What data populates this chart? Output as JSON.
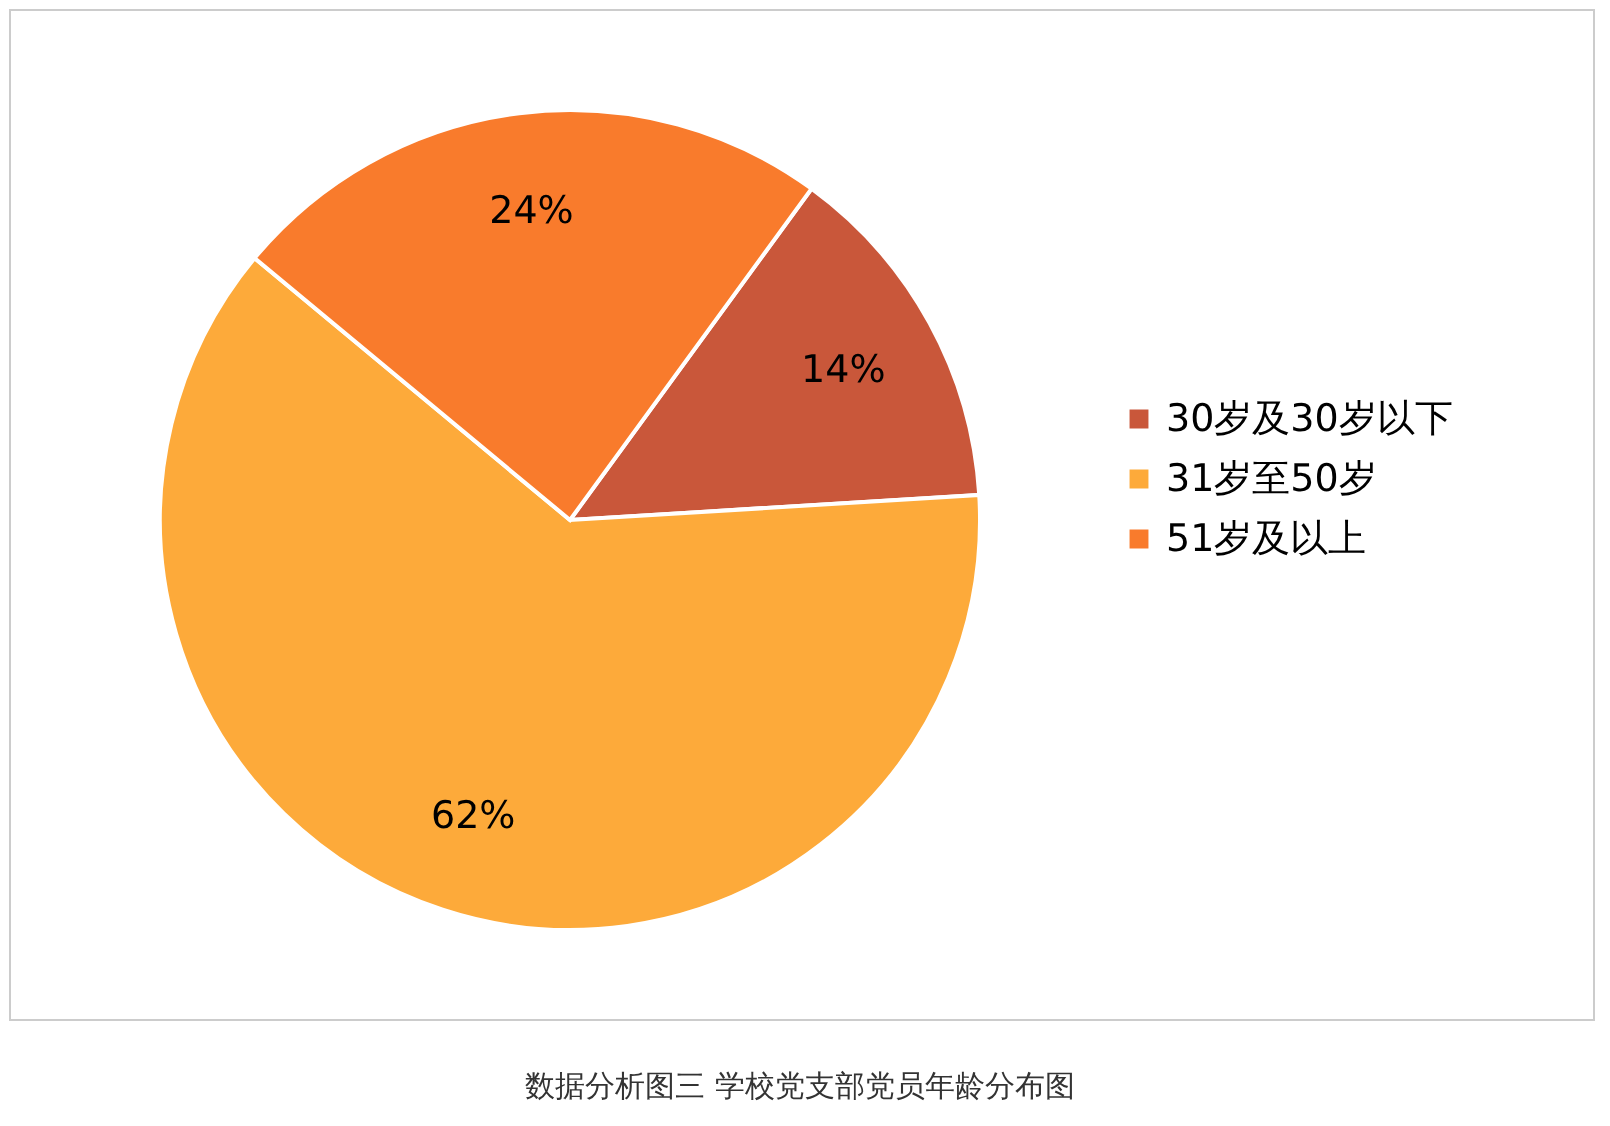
{
  "chart_data": {
    "type": "pie",
    "categories": [
      "30岁及30岁以下",
      "31岁至50岁",
      "51岁及以上"
    ],
    "values": [
      14,
      62,
      24
    ],
    "colors": [
      "#c9573a",
      "#fdaa3a",
      "#f97b2c"
    ],
    "value_labels": [
      "14%",
      "62%",
      "24%"
    ],
    "legend": "right",
    "annotations": [
      "数据分析图三 学校党支部党员年龄分布图"
    ]
  }
}
